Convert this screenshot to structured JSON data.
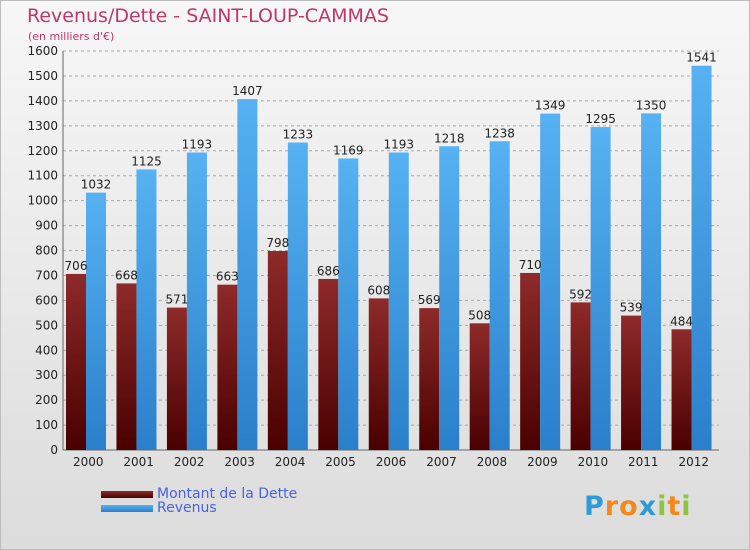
{
  "header": {
    "title": "Revenus/Dette - SAINT-LOUP-CAMMAS",
    "subtitle": "(en milliers d'€)"
  },
  "chart_data": {
    "type": "bar",
    "title": "Revenus/Dette - SAINT-LOUP-CAMMAS",
    "subtitle": "(en milliers d'€)",
    "xlabel": "",
    "ylabel": "",
    "categories": [
      "2000",
      "2001",
      "2002",
      "2003",
      "2004",
      "2005",
      "2006",
      "2007",
      "2008",
      "2009",
      "2010",
      "2011",
      "2012"
    ],
    "series": [
      {
        "name": "Montant de la Dette",
        "color": "#7a1010",
        "values": [
          706,
          668,
          571,
          663,
          798,
          686,
          608,
          569,
          508,
          710,
          592,
          539,
          484
        ]
      },
      {
        "name": "Revenus",
        "color": "#3a9ae6",
        "values": [
          1032,
          1125,
          1193,
          1407,
          1233,
          1169,
          1193,
          1218,
          1238,
          1349,
          1295,
          1350,
          1541
        ]
      }
    ],
    "ylim": [
      0,
      1600
    ],
    "yticks": [
      0,
      100,
      200,
      300,
      400,
      500,
      600,
      700,
      800,
      900,
      1000,
      1100,
      1200,
      1300,
      1400,
      1500,
      1600
    ],
    "grid": true,
    "legend_position": "bottom-left"
  },
  "logo": {
    "letters": [
      "P",
      "r",
      "o",
      "x",
      "i",
      "t",
      "i"
    ],
    "colors": [
      "#2e9bd6",
      "#f08a1c",
      "#f08a1c",
      "#2e9bd6",
      "#8cc63f",
      "#f08a1c",
      "#8cc63f"
    ]
  }
}
